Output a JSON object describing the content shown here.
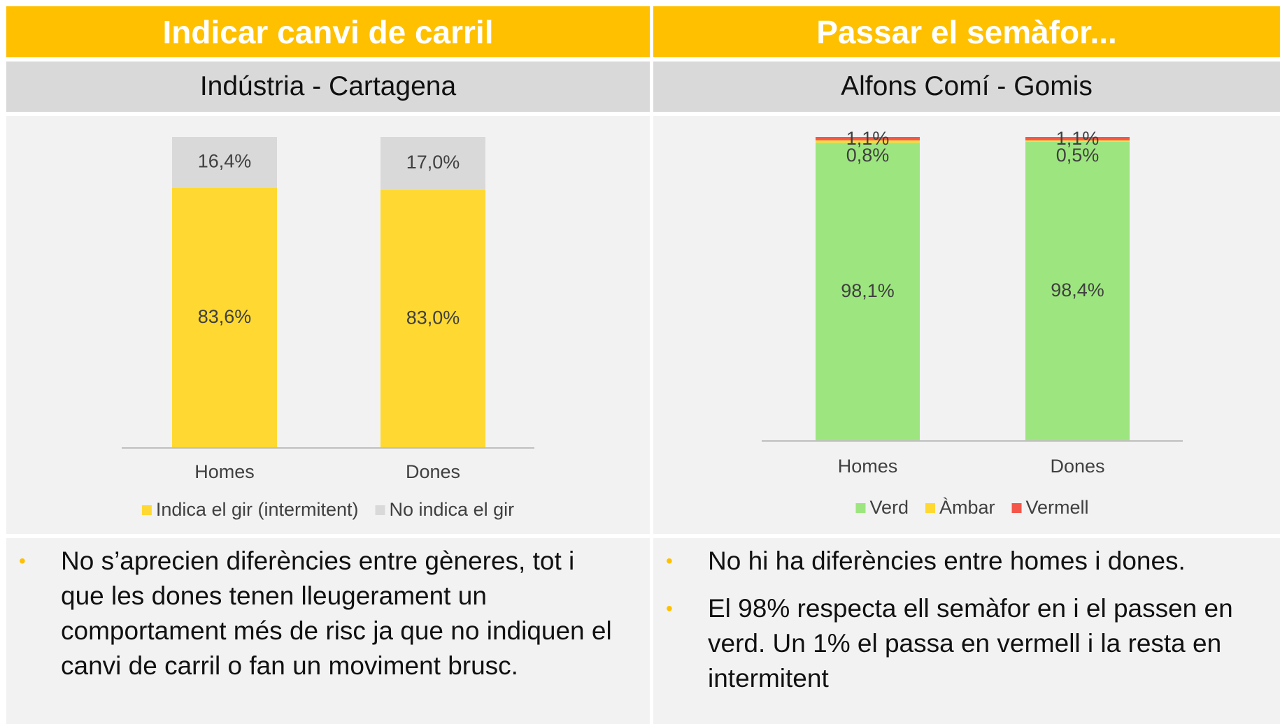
{
  "chart_data": [
    {
      "type": "stacked_bar",
      "title": "Indicar canvi de carril",
      "subtitle": "Indústria - Cartagena",
      "categories": [
        "Homes",
        "Dones"
      ],
      "ylim": [
        0,
        100
      ],
      "series": [
        {
          "name": "Indica el gir (intermitent)",
          "color": "#ffd932",
          "values": [
            83.6,
            83.0
          ],
          "value_labels": [
            "83,6%",
            "83,0%"
          ]
        },
        {
          "name": "No indica el gir",
          "color": "#d9d9d9",
          "values": [
            16.4,
            17.0
          ],
          "value_labels": [
            "16,4%",
            "17,0%"
          ]
        }
      ],
      "notes": [
        "No s’aprecien diferències entre gèneres, tot i que les dones tenen lleugerament un comportament més de risc ja que no indiquen el canvi de carril o fan un moviment brusc."
      ]
    },
    {
      "type": "stacked_bar",
      "title": "Passar el semàfor...",
      "subtitle": "Alfons Comí - Gomis",
      "categories": [
        "Homes",
        "Dones"
      ],
      "ylim": [
        0,
        100
      ],
      "series": [
        {
          "name": "Verd",
          "color": "#9de67f",
          "values": [
            98.1,
            98.4
          ],
          "value_labels": [
            "98,1%",
            "98,4%"
          ]
        },
        {
          "name": "Àmbar",
          "color": "#ffd932",
          "values": [
            0.8,
            0.5
          ],
          "value_labels": [
            "0,8%",
            "0,5%"
          ]
        },
        {
          "name": "Vermell",
          "color": "#f4564a",
          "values": [
            1.1,
            1.1
          ],
          "value_labels": [
            "1,1%",
            "1,1%"
          ]
        }
      ],
      "notes": [
        "No hi ha diferències entre homes i dones.",
        "El 98% respecta ell semàfor en i el passen en verd. Un 1% el passa en vermell i la resta en intermitent"
      ]
    }
  ]
}
